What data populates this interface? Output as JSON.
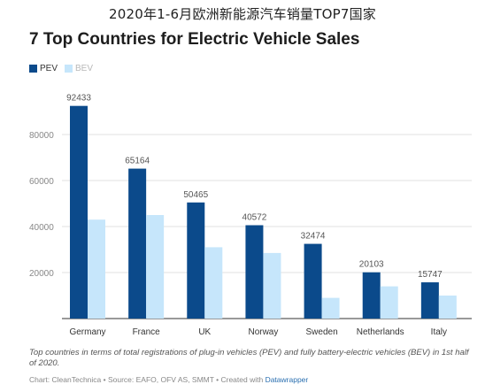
{
  "header": {
    "title": "2020年1-6月欧洲新能源汽车销量TOP7国家"
  },
  "legend": {
    "pev": "PEV",
    "bev": "BEV"
  },
  "colors": {
    "pev": "#0b4a8b",
    "bev": "#c6e6fb",
    "grid": "#e2e2e2",
    "axis": "#333333",
    "tick": "#888888",
    "label": "#555555"
  },
  "chart_data": {
    "type": "bar",
    "title": "7 Top Countries for Electric Vehicle Sales",
    "categories": [
      "Germany",
      "France",
      "UK",
      "Norway",
      "Sweden",
      "Netherlands",
      "Italy"
    ],
    "series": [
      {
        "name": "PEV",
        "values": [
          92433,
          65164,
          50465,
          40572,
          32474,
          20103,
          15747
        ]
      },
      {
        "name": "BEV",
        "values": [
          43000,
          45000,
          31000,
          28500,
          9000,
          14000,
          10000
        ]
      }
    ],
    "data_labels": [
      "92433",
      "65164",
      "50465",
      "40572",
      "32474",
      "20103",
      "15747"
    ],
    "yticks": [
      "20000",
      "40000",
      "60000",
      "80000"
    ],
    "ylim": [
      0,
      100000
    ],
    "grid": true,
    "legend_position": "top-left"
  },
  "caption": "Top countries in terms of total registrations of plug-in vehicles (PEV) and fully battery-electric vehicles (BEV) in 1st half of 2020.",
  "credit": {
    "text": "Chart: CleanTechnica • Source: EAFO, OFV AS, SMMT • Created with ",
    "link": "Datawrapper"
  }
}
